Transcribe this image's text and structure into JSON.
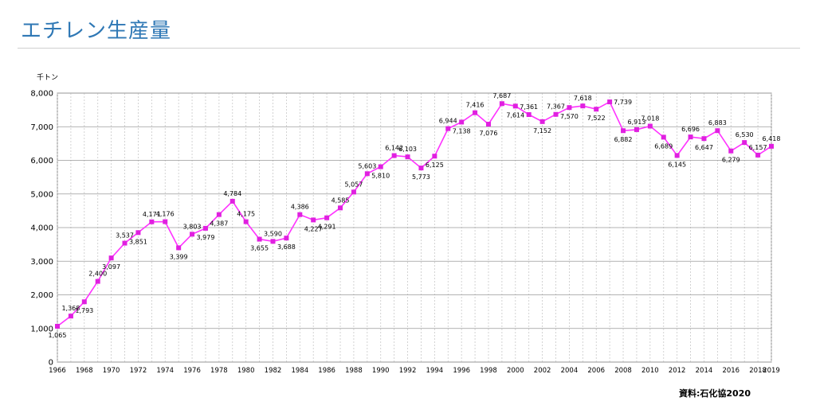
{
  "page": {
    "title": "エチレン生産量",
    "source": "資料:石化協2020"
  },
  "colors": {
    "title": "#2f78b5",
    "series": "#ff33ff",
    "marker": "#e020e0",
    "grid": "#c8c8c8"
  },
  "chart_data": {
    "type": "line",
    "title": "",
    "unit_label": "千トン",
    "xlabel": "",
    "ylabel": "",
    "ylim": [
      0,
      8000
    ],
    "yticks": [
      0,
      1000,
      2000,
      3000,
      4000,
      5000,
      6000,
      7000,
      8000
    ],
    "ytick_labels": [
      "0",
      "1,000",
      "2,000",
      "3,000",
      "4,000",
      "5,000",
      "6,000",
      "7,000",
      "8,000"
    ],
    "xlim": [
      1966,
      2019
    ],
    "xtick_labels": [
      "1966",
      "1968",
      "1970",
      "1972",
      "1974",
      "1976",
      "1978",
      "1980",
      "1982",
      "1984",
      "1986",
      "1988",
      "1990",
      "1992",
      "1994",
      "1996",
      "1998",
      "2000",
      "2002",
      "2004",
      "2006",
      "2008",
      "2010",
      "2012",
      "2014",
      "2016",
      "2018",
      "2019"
    ],
    "grid": true,
    "legend": "none",
    "x": [
      1966,
      1967,
      1968,
      1969,
      1970,
      1971,
      1972,
      1973,
      1974,
      1975,
      1976,
      1977,
      1978,
      1979,
      1980,
      1981,
      1982,
      1983,
      1984,
      1985,
      1986,
      1987,
      1988,
      1989,
      1990,
      1991,
      1992,
      1993,
      1994,
      1995,
      1996,
      1997,
      1998,
      1999,
      2000,
      2001,
      2002,
      2003,
      2004,
      2005,
      2006,
      2007,
      2008,
      2009,
      2010,
      2011,
      2012,
      2013,
      2014,
      2015,
      2016,
      2017,
      2018,
      2019
    ],
    "values": [
      1065,
      1368,
      1793,
      2400,
      3097,
      3537,
      3851,
      4171,
      4176,
      3399,
      3803,
      3979,
      4387,
      4784,
      4175,
      3655,
      3590,
      3688,
      4386,
      4227,
      4291,
      4585,
      5057,
      5603,
      5810,
      6142,
      6103,
      5773,
      6125,
      6944,
      7138,
      7416,
      7076,
      7687,
      7614,
      7361,
      7152,
      7367,
      7570,
      7618,
      7522,
      7739,
      6882,
      6913,
      7018,
      6689,
      6145,
      6696,
      6647,
      6883,
      6279,
      6530,
      6157,
      6418
    ],
    "data_labels": [
      "1,065",
      "1,368",
      "1,793",
      "2,400",
      "3,097",
      "3,537",
      "3,851",
      "4,171",
      "4,176",
      "3,399",
      "3,803",
      "3,979",
      "4,387",
      "4,784",
      "4,175",
      "3,655",
      "3,590",
      "3,688",
      "4,386",
      "4,227",
      "4,291",
      "4,585",
      "5,057",
      "5,603",
      "5,810",
      "6,142",
      "6,103",
      "5,773",
      "6,125",
      "6,944",
      "7,138",
      "7,416",
      "7,076",
      "7,687",
      "7,614",
      "7,361",
      "7,152",
      "7,367",
      "7,570",
      "7,618",
      "7,522",
      "7,739",
      "6,882",
      "6,913",
      "7,018",
      "6,689",
      "6,145",
      "6,696",
      "6,647",
      "6,883",
      "6,279",
      "6,530",
      "6,157",
      "6,418"
    ],
    "label_pos": [
      "below",
      "above",
      "below",
      "above",
      "below",
      "above",
      "below",
      "above",
      "above",
      "below",
      "above",
      "below",
      "below",
      "above",
      "above",
      "below",
      "above",
      "below",
      "above",
      "below",
      "below",
      "above",
      "above",
      "above",
      "below",
      "above",
      "above",
      "below",
      "below",
      "above",
      "below",
      "above",
      "below",
      "above",
      "below",
      "above",
      "below",
      "above",
      "below",
      "above",
      "below",
      "right",
      "below",
      "above",
      "above",
      "below",
      "below",
      "above",
      "below",
      "above",
      "below",
      "above",
      "above",
      "above"
    ]
  }
}
